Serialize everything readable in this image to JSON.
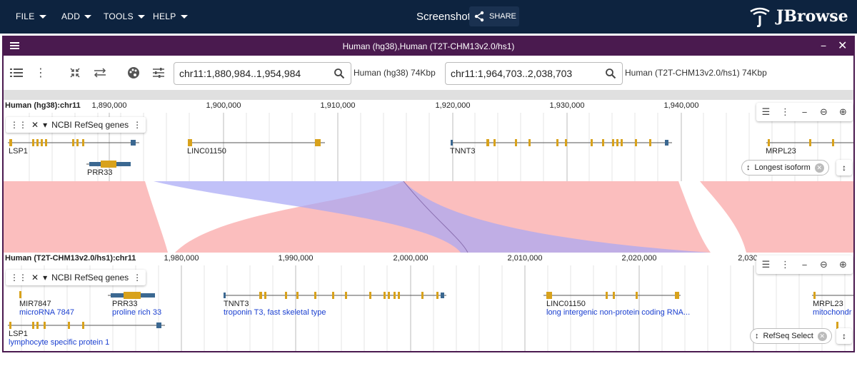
{
  "app": {
    "menus": [
      "FILE",
      "ADD",
      "TOOLS",
      "HELP"
    ],
    "session_name": "Screenshot",
    "share_label": "SHARE",
    "logo_text": "JBrowse"
  },
  "view": {
    "title": "Human (hg38),Human (T2T-CHM13v2.0/hs1)",
    "top_locus": "chr11:1,880,984..1,954,984",
    "top_assembly": "Human (hg38) 74Kbp",
    "bottom_locus": "chr11:1,964,703..2,038,703",
    "bottom_assembly": "Human (T2T-CHM13v2.0/hs1) 74Kbp"
  },
  "top": {
    "asm_label": "Human (hg38):chr11",
    "ticks": [
      "1,890,000",
      "1,900,000",
      "1,910,000",
      "1,920,000",
      "1,930,000",
      "1,940,000"
    ],
    "track_name": "NCBI RefSeq genes",
    "genes": [
      "LSP1",
      "PRR33",
      "LINC01150",
      "TNNT3",
      "MRPL23"
    ],
    "chip": "Longest isoform"
  },
  "bottom": {
    "asm_label": "Human (T2T-CHM13v2.0/hs1):chr11",
    "ticks": [
      "1,980,000",
      "1,990,000",
      "2,000,000",
      "2,010,000",
      "2,020,000",
      "2,030"
    ],
    "track_name": "NCBI RefSeq genes",
    "genes": [
      {
        "name": "MIR7847",
        "desc": "microRNA 7847"
      },
      {
        "name": "PRR33",
        "desc": "proline rich 33"
      },
      {
        "name": "TNNT3",
        "desc": "troponin T3, fast skeletal type"
      },
      {
        "name": "LINC01150",
        "desc": "long intergenic non-protein coding RNA..."
      },
      {
        "name": "MRPL23",
        "desc": "mitochondr"
      },
      {
        "name": "LSP1",
        "desc": "lymphocyte specific protein 1"
      }
    ],
    "chip": "RefSeq Select"
  },
  "icons": {
    "track_selector": "list-icon",
    "view_menu": "more-vert-icon",
    "collapse": "shrink-icon",
    "swap": "swap-icon",
    "palette": "palette-icon",
    "settings": "tune-icon",
    "search": "search-icon"
  },
  "colors": {
    "appbar": "#0d233f",
    "view_header": "#4a1a4f",
    "exon": "#d8a21c",
    "utr": "#3b6891",
    "synteny_forward": "#f9a8a8",
    "synteny_inverted": "#a6a6f5",
    "description": "#1a3fd0"
  }
}
